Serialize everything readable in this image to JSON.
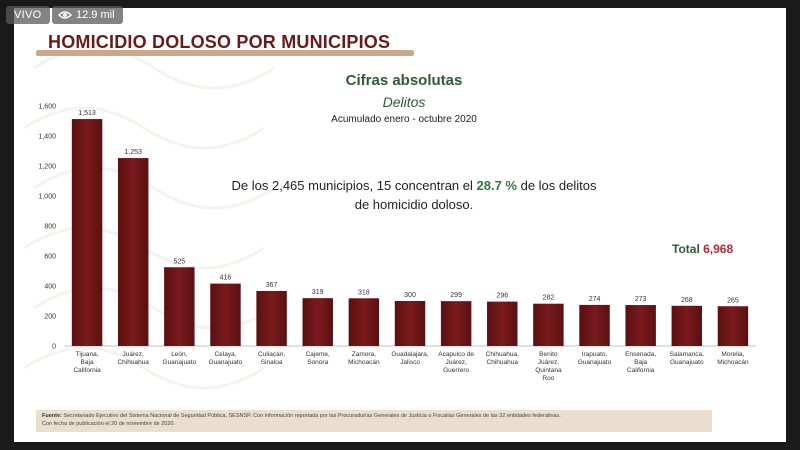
{
  "overlay": {
    "live_label": "VIVO",
    "view_count": "12.9 mil"
  },
  "slide": {
    "heading": "HOMICIDIO DOLOSO POR MUNICIPIOS",
    "annotation_pre": "De los 2,465 municipios, 15 concentran el ",
    "annotation_pct": "28.7 %",
    "annotation_post": " de los delitos de homicidio doloso.",
    "total_label": "Total",
    "total_value": "6,968",
    "source_bold": "Fuente:",
    "source_text": "Secretariado Ejecutivo del Sistema Nacional de Seguridad Pública, SESNSP. Con información reportada por las Procuradurías Generales de Justicia o Fiscalías Generales de las 32 entidades federativas.",
    "source_date": "Con fecha de publicación el 20 de noviembre de 2020."
  },
  "chart_data": {
    "type": "bar",
    "title": "Cifras absolutas",
    "subtitle": "Delitos",
    "period": "Acumulado enero - octubre 2020",
    "categories": [
      [
        "Tijuana,",
        "Baja",
        "California"
      ],
      [
        "Juárez,",
        "Chihuahua"
      ],
      [
        "León,",
        "Guanajuato"
      ],
      [
        "Celaya,",
        "Guanajuato"
      ],
      [
        "Culiacán,",
        "Sinaloa"
      ],
      [
        "Cajeme,",
        "Sonora"
      ],
      [
        "Zamora,",
        "Michoacán"
      ],
      [
        "Guadalajara,",
        "Jalisco"
      ],
      [
        "Acapulco de",
        "Juárez,",
        "Guerrero"
      ],
      [
        "Chihuahua,",
        "Chihuahua"
      ],
      [
        "Benito",
        "Juárez,",
        "Quintana",
        "Roo"
      ],
      [
        "Irapuato,",
        "Guanajuato"
      ],
      [
        "Ensenada,",
        "Baja",
        "California"
      ],
      [
        "Salamanca,",
        "Guanajuato"
      ],
      [
        "Morelia,",
        "Michoacán"
      ]
    ],
    "values": [
      1513,
      1253,
      525,
      416,
      367,
      319,
      318,
      300,
      299,
      296,
      282,
      274,
      273,
      268,
      265
    ],
    "value_labels": [
      "1,513",
      "1,253",
      "525",
      "416",
      "367",
      "319",
      "318",
      "300",
      "299",
      "296",
      "282",
      "274",
      "273",
      "268",
      "265"
    ],
    "yticks": [
      0,
      200,
      400,
      600,
      800,
      1000,
      1200,
      1400,
      1600
    ],
    "ytick_labels": [
      "0",
      "200",
      "400",
      "600",
      "800",
      "1,000",
      "1,200",
      "1,400",
      "1,600"
    ],
    "ylim": [
      0,
      1600
    ],
    "grid": false,
    "colors": {
      "bar": "#7a1a1c",
      "bar_dark": "#5a1012",
      "accent_green": "#2f5a33",
      "accent_red": "#c0262a"
    }
  }
}
